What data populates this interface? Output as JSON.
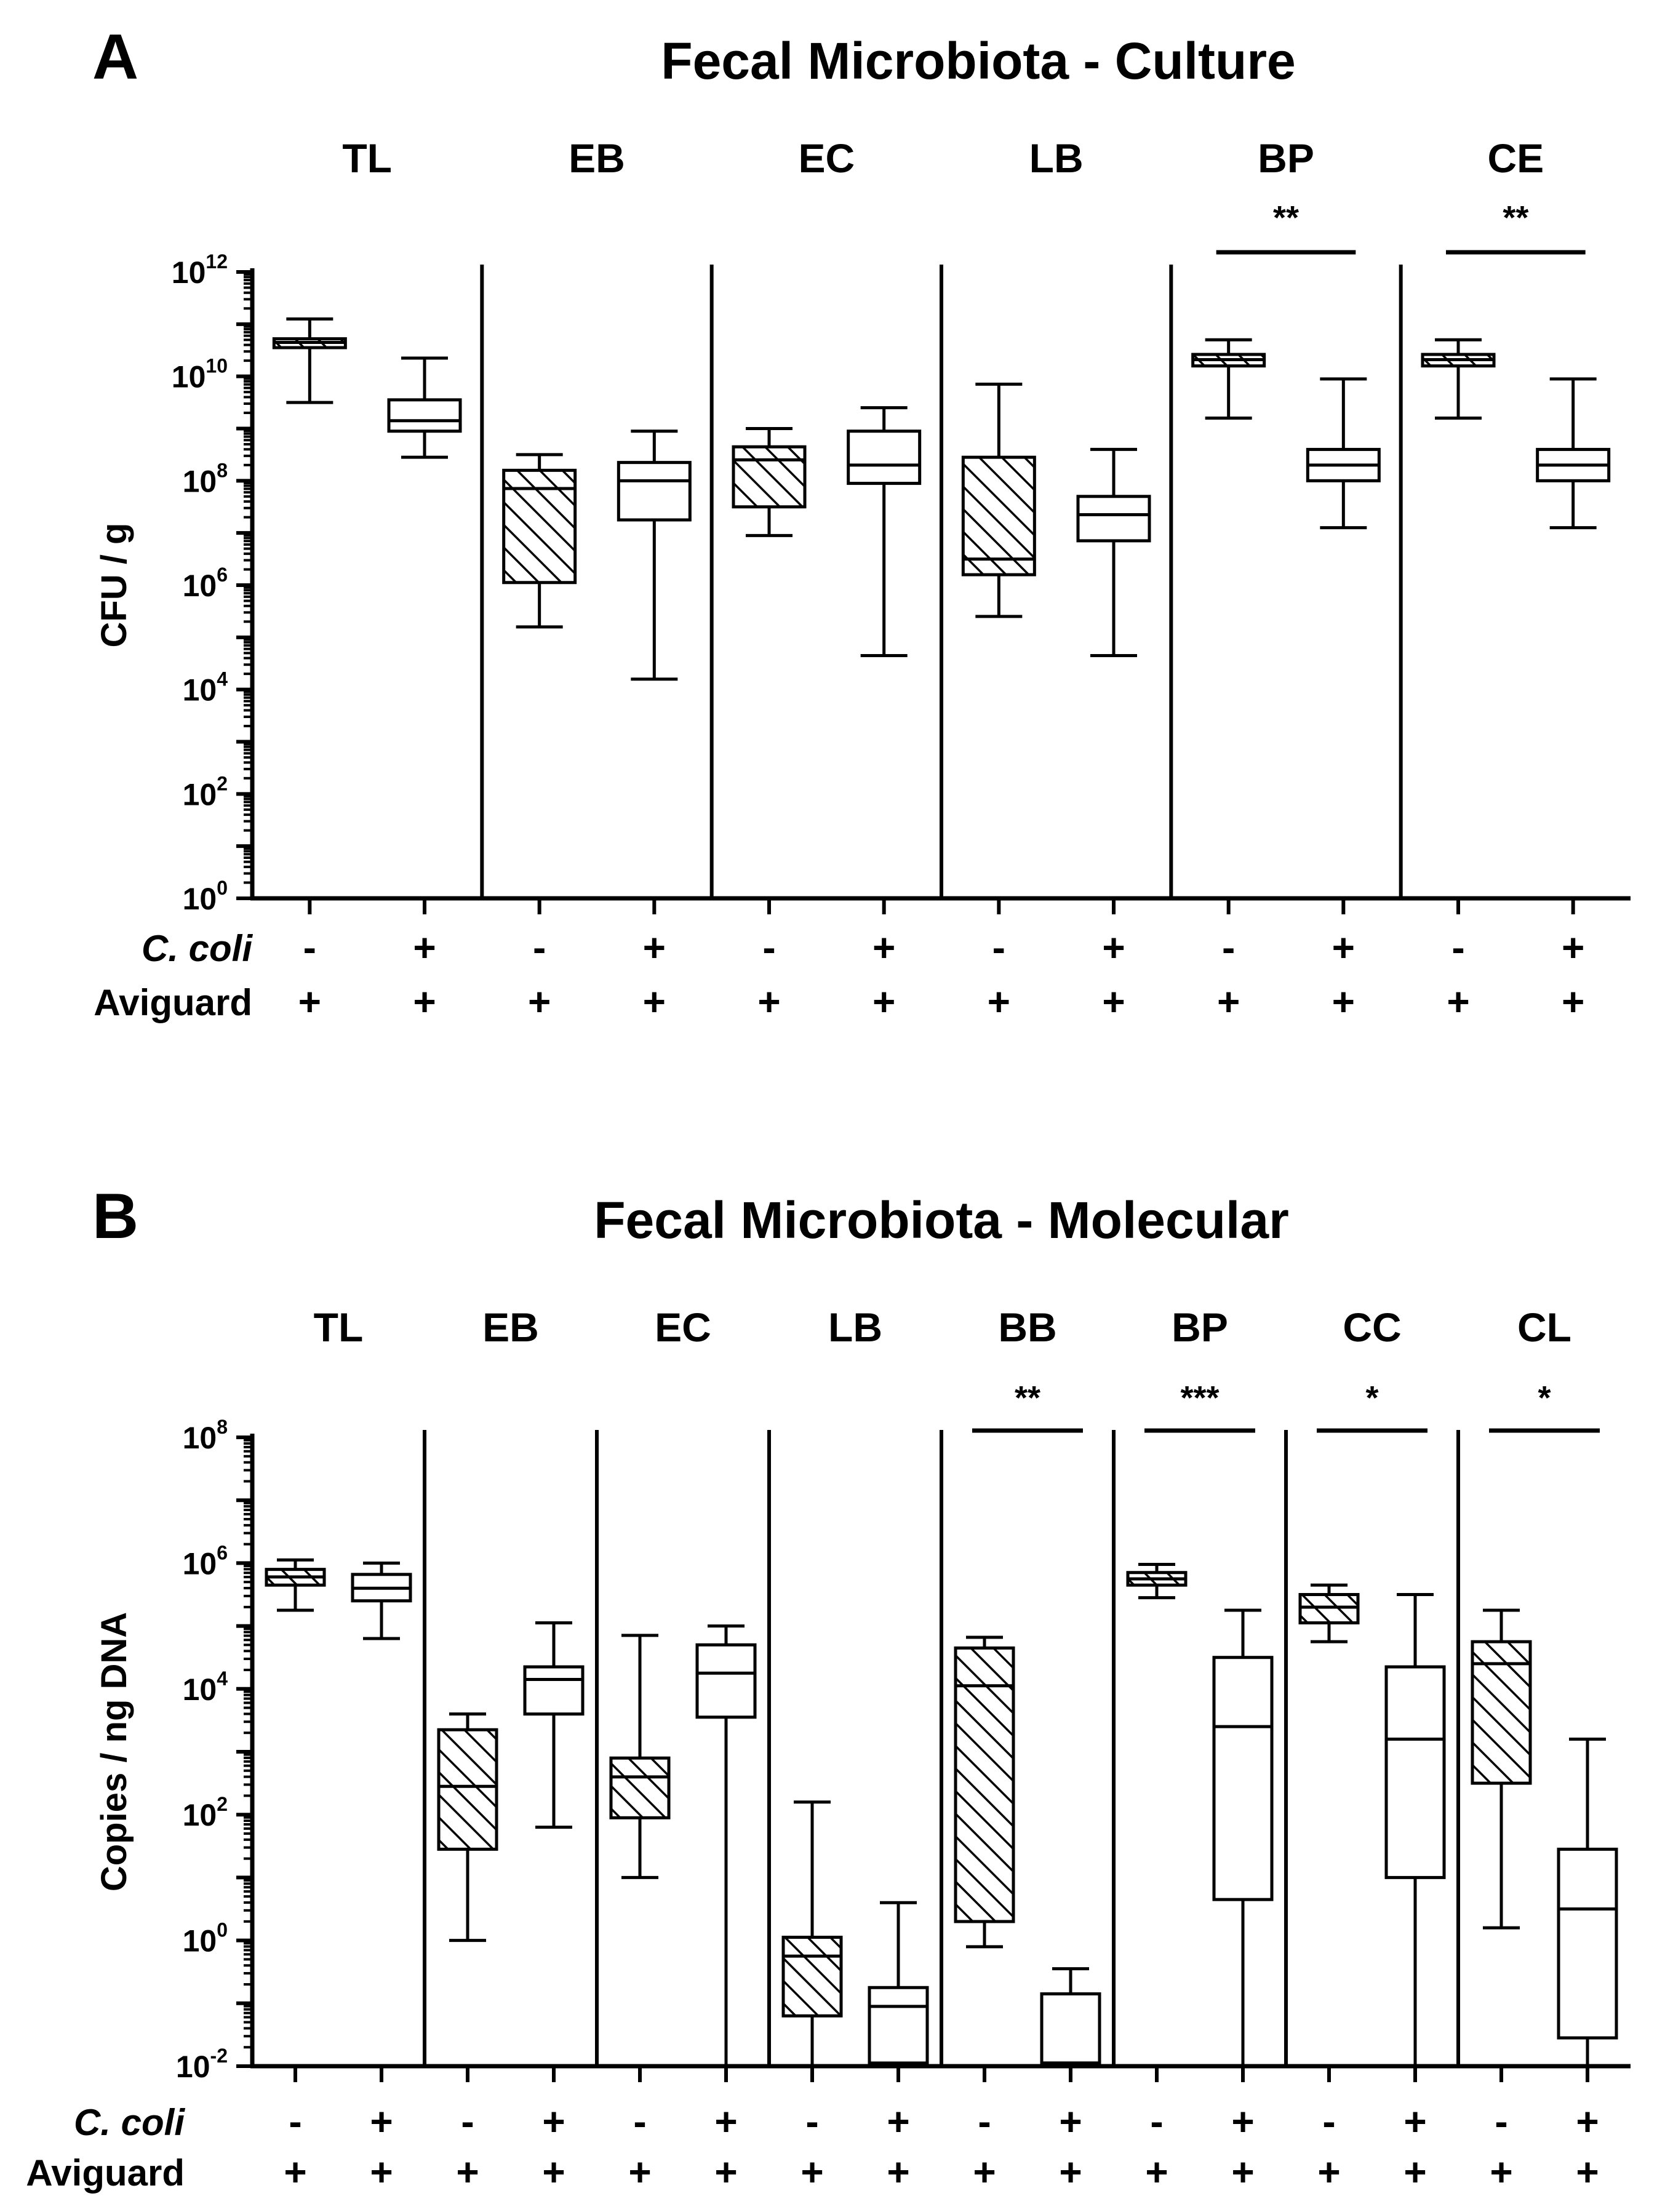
{
  "chart_data": [
    {
      "panel": "A",
      "type": "box",
      "title": "Fecal Microbiota - Culture",
      "ylabel": "CFU / g",
      "yscale": "log10",
      "ylim_exp": [
        0,
        12
      ],
      "yticks_exp": [
        0,
        2,
        4,
        6,
        8,
        10,
        12
      ],
      "row_labels": [
        "C. coli",
        "Aviguard"
      ],
      "groups": [
        {
          "label": "TL",
          "sig": "",
          "boxes": [
            {
              "pattern": "hatched",
              "ccoli": "-",
              "aviguard": "+",
              "whisker_low": 9.5,
              "q1": 10.55,
              "median": 10.65,
              "q3": 10.72,
              "whisker_high": 11.1
            },
            {
              "pattern": "open",
              "ccoli": "+",
              "aviguard": "+",
              "whisker_low": 8.45,
              "q1": 8.95,
              "median": 9.15,
              "q3": 9.55,
              "whisker_high": 10.35
            }
          ]
        },
        {
          "label": "EB",
          "sig": "",
          "boxes": [
            {
              "pattern": "hatched",
              "ccoli": "-",
              "aviguard": "+",
              "whisker_low": 5.2,
              "q1": 6.05,
              "median": 7.85,
              "q3": 8.2,
              "whisker_high": 8.5
            },
            {
              "pattern": "open",
              "ccoli": "+",
              "aviguard": "+",
              "whisker_low": 4.2,
              "q1": 7.25,
              "median": 8.0,
              "q3": 8.35,
              "whisker_high": 8.95
            }
          ]
        },
        {
          "label": "EC",
          "sig": "",
          "boxes": [
            {
              "pattern": "hatched",
              "ccoli": "-",
              "aviguard": "+",
              "whisker_low": 6.95,
              "q1": 7.5,
              "median": 8.4,
              "q3": 8.65,
              "whisker_high": 9.0
            },
            {
              "pattern": "open",
              "ccoli": "+",
              "aviguard": "+",
              "whisker_low": 4.65,
              "q1": 7.95,
              "median": 8.3,
              "q3": 8.95,
              "whisker_high": 9.4
            }
          ]
        },
        {
          "label": "LB",
          "sig": "",
          "boxes": [
            {
              "pattern": "hatched",
              "ccoli": "-",
              "aviguard": "+",
              "whisker_low": 5.4,
              "q1": 6.2,
              "median": 6.5,
              "q3": 8.45,
              "whisker_high": 9.85
            },
            {
              "pattern": "open",
              "ccoli": "+",
              "aviguard": "+",
              "whisker_low": 4.65,
              "q1": 6.85,
              "median": 7.35,
              "q3": 7.7,
              "whisker_high": 8.6
            }
          ]
        },
        {
          "label": "BP",
          "sig": "**",
          "boxes": [
            {
              "pattern": "hatched",
              "ccoli": "-",
              "aviguard": "+",
              "whisker_low": 9.2,
              "q1": 10.2,
              "median": 10.32,
              "q3": 10.42,
              "whisker_high": 10.7
            },
            {
              "pattern": "open",
              "ccoli": "+",
              "aviguard": "+",
              "whisker_low": 7.1,
              "q1": 8.0,
              "median": 8.3,
              "q3": 8.6,
              "whisker_high": 9.95
            }
          ]
        },
        {
          "label": "CE",
          "sig": "**",
          "boxes": [
            {
              "pattern": "hatched",
              "ccoli": "-",
              "aviguard": "+",
              "whisker_low": 9.2,
              "q1": 10.2,
              "median": 10.32,
              "q3": 10.42,
              "whisker_high": 10.7
            },
            {
              "pattern": "open",
              "ccoli": "+",
              "aviguard": "+",
              "whisker_low": 7.1,
              "q1": 8.0,
              "median": 8.3,
              "q3": 8.6,
              "whisker_high": 9.95
            }
          ]
        }
      ]
    },
    {
      "panel": "B",
      "type": "box",
      "title": "Fecal Microbiota - Molecular",
      "ylabel": "Copies / ng DNA",
      "yscale": "log10",
      "ylim_exp": [
        -2,
        8
      ],
      "yticks_exp": [
        -2,
        0,
        2,
        4,
        6,
        8
      ],
      "row_labels": [
        "C. coli",
        "Aviguard"
      ],
      "groups": [
        {
          "label": "TL",
          "sig": "",
          "boxes": [
            {
              "pattern": "hatched",
              "ccoli": "-",
              "aviguard": "+",
              "whisker_low": 5.25,
              "q1": 5.65,
              "median": 5.78,
              "q3": 5.9,
              "whisker_high": 6.05
            },
            {
              "pattern": "open",
              "ccoli": "+",
              "aviguard": "+",
              "whisker_low": 4.8,
              "q1": 5.4,
              "median": 5.6,
              "q3": 5.82,
              "whisker_high": 6.0
            }
          ]
        },
        {
          "label": "EB",
          "sig": "",
          "boxes": [
            {
              "pattern": "hatched",
              "ccoli": "-",
              "aviguard": "+",
              "whisker_low": 0.0,
              "q1": 1.45,
              "median": 2.45,
              "q3": 3.35,
              "whisker_high": 3.6
            },
            {
              "pattern": "open",
              "ccoli": "+",
              "aviguard": "+",
              "whisker_low": 1.8,
              "q1": 3.6,
              "median": 4.15,
              "q3": 4.35,
              "whisker_high": 5.05
            }
          ]
        },
        {
          "label": "EC",
          "sig": "",
          "boxes": [
            {
              "pattern": "hatched",
              "ccoli": "-",
              "aviguard": "+",
              "whisker_low": 1.0,
              "q1": 1.95,
              "median": 2.6,
              "q3": 2.9,
              "whisker_high": 4.85
            },
            {
              "pattern": "open",
              "ccoli": "+",
              "aviguard": "+",
              "whisker_low": -2.0,
              "q1": 3.55,
              "median": 4.25,
              "q3": 4.7,
              "whisker_high": 5.0
            }
          ]
        },
        {
          "label": "LB",
          "sig": "",
          "boxes": [
            {
              "pattern": "hatched",
              "ccoli": "-",
              "aviguard": "+",
              "whisker_low": -2.0,
              "q1": -1.2,
              "median": -0.25,
              "q3": 0.05,
              "whisker_high": 2.2
            },
            {
              "pattern": "open",
              "ccoli": "+",
              "aviguard": "+",
              "whisker_low": -2.0,
              "q1": -1.95,
              "median": -1.05,
              "q3": -0.75,
              "whisker_high": 0.6
            }
          ]
        },
        {
          "label": "BB",
          "sig": "**",
          "boxes": [
            {
              "pattern": "hatched",
              "ccoli": "-",
              "aviguard": "+",
              "whisker_low": -0.1,
              "q1": 0.3,
              "median": 4.05,
              "q3": 4.65,
              "whisker_high": 4.82
            },
            {
              "pattern": "open",
              "ccoli": "+",
              "aviguard": "+",
              "whisker_low": -2.0,
              "q1": -1.95,
              "median": -1.95,
              "q3": -0.85,
              "whisker_high": -0.45
            }
          ]
        },
        {
          "label": "BP",
          "sig": "***",
          "boxes": [
            {
              "pattern": "hatched",
              "ccoli": "-",
              "aviguard": "+",
              "whisker_low": 5.45,
              "q1": 5.65,
              "median": 5.75,
              "q3": 5.85,
              "whisker_high": 5.98
            },
            {
              "pattern": "open",
              "ccoli": "+",
              "aviguard": "+",
              "whisker_low": -2.0,
              "q1": 0.65,
              "median": 3.4,
              "q3": 4.5,
              "whisker_high": 5.25
            }
          ]
        },
        {
          "label": "CC",
          "sig": "*",
          "boxes": [
            {
              "pattern": "hatched",
              "ccoli": "-",
              "aviguard": "+",
              "whisker_low": 4.75,
              "q1": 5.05,
              "median": 5.3,
              "q3": 5.5,
              "whisker_high": 5.65
            },
            {
              "pattern": "open",
              "ccoli": "+",
              "aviguard": "+",
              "whisker_low": -2.0,
              "q1": 1.0,
              "median": 3.2,
              "q3": 4.35,
              "whisker_high": 5.5
            }
          ]
        },
        {
          "label": "CL",
          "sig": "*",
          "boxes": [
            {
              "pattern": "hatched",
              "ccoli": "-",
              "aviguard": "+",
              "whisker_low": 0.2,
              "q1": 2.5,
              "median": 4.4,
              "q3": 4.75,
              "whisker_high": 5.25
            },
            {
              "pattern": "open",
              "ccoli": "+",
              "aviguard": "+",
              "whisker_low": -2.0,
              "q1": -1.55,
              "median": 0.5,
              "q3": 1.45,
              "whisker_high": 3.2
            }
          ]
        }
      ]
    }
  ]
}
